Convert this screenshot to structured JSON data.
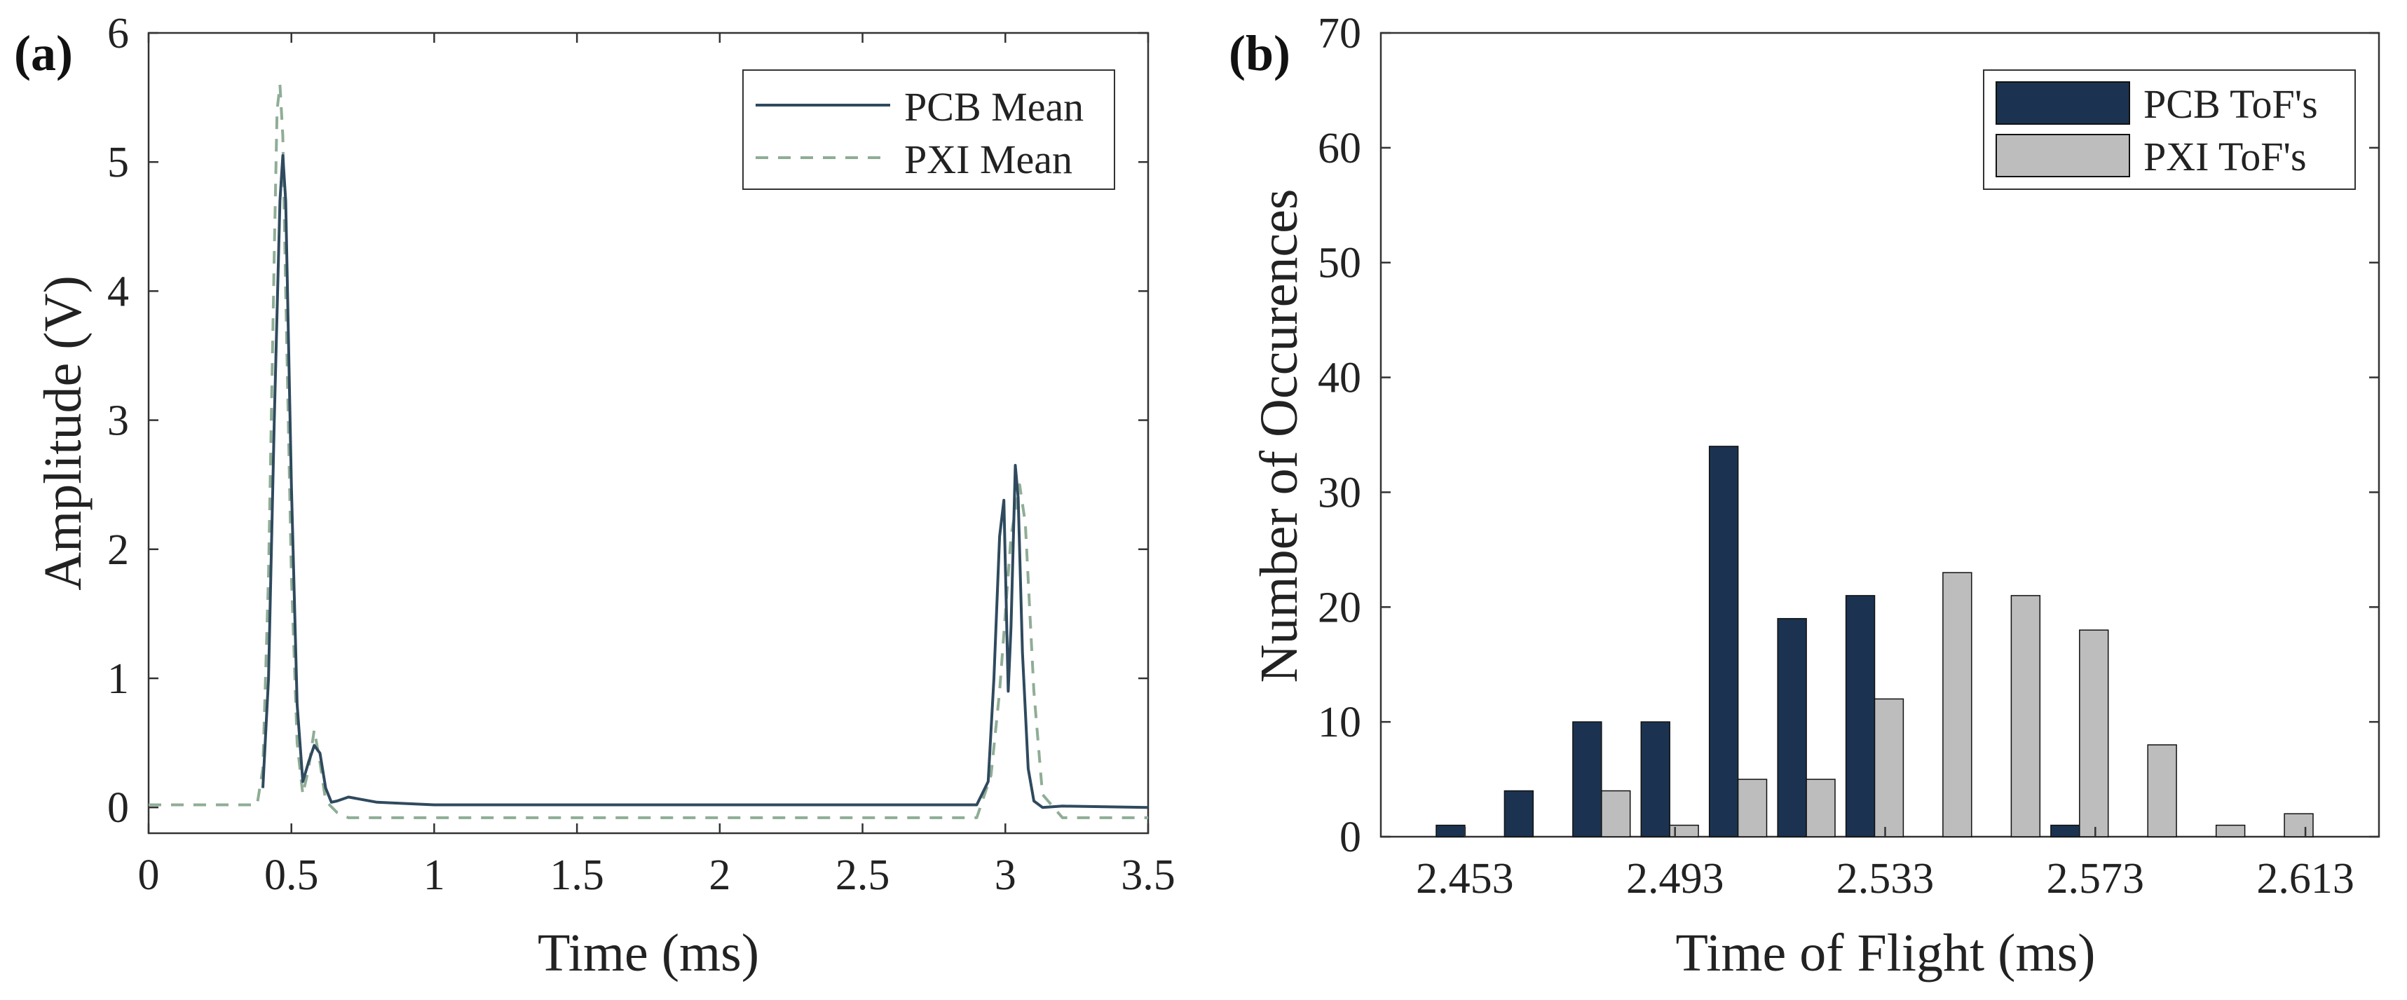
{
  "chart_data": [
    {
      "panel_label": "(a)",
      "type": "line",
      "xlabel": "Time (ms)",
      "ylabel": "Amplitude (V)",
      "xlim": [
        0,
        3.5
      ],
      "ylim": [
        -0.2,
        6
      ],
      "xticks": [
        "0",
        "0.5",
        "1",
        "1.5",
        "2",
        "2.5",
        "3",
        "3.5"
      ],
      "xtick_values": [
        0,
        0.5,
        1,
        1.5,
        2,
        2.5,
        3,
        3.5
      ],
      "yticks": [
        "0",
        "1",
        "2",
        "3",
        "4",
        "5",
        "6"
      ],
      "ytick_values": [
        0,
        1,
        2,
        3,
        4,
        5,
        6
      ],
      "legend": "top-right",
      "grid": false,
      "series": [
        {
          "name": "PCB Mean",
          "style": "solid",
          "color": "#2f4a5e",
          "x": [
            0.4,
            0.42,
            0.44,
            0.46,
            0.47,
            0.48,
            0.5,
            0.52,
            0.54,
            0.56,
            0.58,
            0.6,
            0.62,
            0.64,
            0.66,
            0.7,
            0.8,
            1.0,
            1.5,
            2.0,
            2.5,
            2.9,
            2.94,
            2.96,
            2.98,
            2.995,
            3.01,
            3.02,
            3.035,
            3.045,
            3.06,
            3.08,
            3.1,
            3.13,
            3.2,
            3.5
          ],
          "y": [
            0.15,
            1.0,
            3.0,
            4.7,
            5.05,
            4.7,
            2.5,
            0.8,
            0.2,
            0.35,
            0.48,
            0.42,
            0.15,
            0.04,
            0.05,
            0.08,
            0.04,
            0.02,
            0.02,
            0.02,
            0.02,
            0.02,
            0.2,
            1.0,
            2.1,
            2.38,
            0.9,
            1.4,
            2.65,
            2.4,
            1.2,
            0.3,
            0.05,
            0.0,
            0.01,
            0.0
          ]
        },
        {
          "name": "PXI Mean",
          "style": "dashed",
          "color": "#8fad96",
          "x": [
            0.0,
            0.3,
            0.38,
            0.4,
            0.42,
            0.44,
            0.45,
            0.46,
            0.47,
            0.48,
            0.5,
            0.52,
            0.54,
            0.56,
            0.58,
            0.6,
            0.62,
            0.66,
            0.7,
            1.0,
            2.0,
            2.9,
            2.95,
            2.98,
            3.0,
            3.02,
            3.05,
            3.07,
            3.1,
            3.13,
            3.2,
            3.5
          ],
          "y": [
            0.02,
            0.02,
            0.02,
            0.3,
            1.8,
            4.3,
            5.4,
            5.6,
            5.2,
            4.0,
            1.8,
            0.5,
            0.1,
            0.3,
            0.6,
            0.35,
            0.05,
            -0.04,
            -0.08,
            -0.08,
            -0.08,
            -0.08,
            0.25,
            0.9,
            1.5,
            2.1,
            2.5,
            2.2,
            0.9,
            0.1,
            -0.08,
            -0.08
          ]
        }
      ]
    },
    {
      "panel_label": "(b)",
      "type": "bar",
      "xlabel": "Time of Flight (ms)",
      "ylabel": "Number of Occurences",
      "xlim": [
        2.437,
        2.627
      ],
      "ylim": [
        0,
        70
      ],
      "xticks": [
        "2.453",
        "2.493",
        "2.533",
        "2.573",
        "2.613"
      ],
      "xtick_values": [
        2.453,
        2.493,
        2.533,
        2.573,
        2.613
      ],
      "yticks": [
        "0",
        "10",
        "20",
        "30",
        "40",
        "50",
        "60",
        "70"
      ],
      "ytick_values": [
        0,
        10,
        20,
        30,
        40,
        50,
        60,
        70
      ],
      "legend": "top-right",
      "grid": false,
      "categories": [
        2.453,
        2.466,
        2.479,
        2.492,
        2.505,
        2.518,
        2.531,
        2.544,
        2.557,
        2.57,
        2.583,
        2.596,
        2.609
      ],
      "series": [
        {
          "name": "PCB ToF's",
          "color": "#1b3350",
          "values": [
            1,
            4,
            10,
            10,
            34,
            19,
            21,
            0,
            0,
            1,
            0,
            0,
            0
          ]
        },
        {
          "name": "PXI ToF's",
          "color": "#bdbdbd",
          "values": [
            0,
            0,
            4,
            1,
            5,
            5,
            12,
            23,
            21,
            18,
            8,
            1,
            2
          ]
        }
      ]
    }
  ]
}
